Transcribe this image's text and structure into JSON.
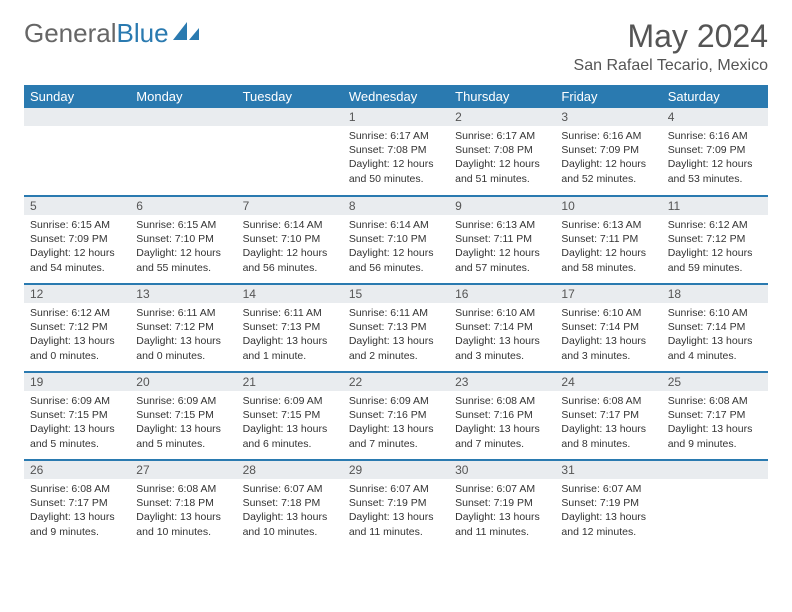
{
  "logo": {
    "text1": "General",
    "text2": "Blue"
  },
  "header": {
    "month": "May 2024",
    "location": "San Rafael Tecario, Mexico"
  },
  "calendar": {
    "background_color": "#ffffff",
    "header_bg": "#2a7ab0",
    "header_fg": "#ffffff",
    "daynum_bg": "#e9ecef",
    "border_color": "#2a7ab0",
    "font_family": "Arial",
    "columns": [
      "Sunday",
      "Monday",
      "Tuesday",
      "Wednesday",
      "Thursday",
      "Friday",
      "Saturday"
    ],
    "weeks": [
      [
        null,
        null,
        null,
        {
          "n": "1",
          "sr": "6:17 AM",
          "ss": "7:08 PM",
          "dl": "12 hours and 50 minutes."
        },
        {
          "n": "2",
          "sr": "6:17 AM",
          "ss": "7:08 PM",
          "dl": "12 hours and 51 minutes."
        },
        {
          "n": "3",
          "sr": "6:16 AM",
          "ss": "7:09 PM",
          "dl": "12 hours and 52 minutes."
        },
        {
          "n": "4",
          "sr": "6:16 AM",
          "ss": "7:09 PM",
          "dl": "12 hours and 53 minutes."
        }
      ],
      [
        {
          "n": "5",
          "sr": "6:15 AM",
          "ss": "7:09 PM",
          "dl": "12 hours and 54 minutes."
        },
        {
          "n": "6",
          "sr": "6:15 AM",
          "ss": "7:10 PM",
          "dl": "12 hours and 55 minutes."
        },
        {
          "n": "7",
          "sr": "6:14 AM",
          "ss": "7:10 PM",
          "dl": "12 hours and 56 minutes."
        },
        {
          "n": "8",
          "sr": "6:14 AM",
          "ss": "7:10 PM",
          "dl": "12 hours and 56 minutes."
        },
        {
          "n": "9",
          "sr": "6:13 AM",
          "ss": "7:11 PM",
          "dl": "12 hours and 57 minutes."
        },
        {
          "n": "10",
          "sr": "6:13 AM",
          "ss": "7:11 PM",
          "dl": "12 hours and 58 minutes."
        },
        {
          "n": "11",
          "sr": "6:12 AM",
          "ss": "7:12 PM",
          "dl": "12 hours and 59 minutes."
        }
      ],
      [
        {
          "n": "12",
          "sr": "6:12 AM",
          "ss": "7:12 PM",
          "dl": "13 hours and 0 minutes."
        },
        {
          "n": "13",
          "sr": "6:11 AM",
          "ss": "7:12 PM",
          "dl": "13 hours and 0 minutes."
        },
        {
          "n": "14",
          "sr": "6:11 AM",
          "ss": "7:13 PM",
          "dl": "13 hours and 1 minute."
        },
        {
          "n": "15",
          "sr": "6:11 AM",
          "ss": "7:13 PM",
          "dl": "13 hours and 2 minutes."
        },
        {
          "n": "16",
          "sr": "6:10 AM",
          "ss": "7:14 PM",
          "dl": "13 hours and 3 minutes."
        },
        {
          "n": "17",
          "sr": "6:10 AM",
          "ss": "7:14 PM",
          "dl": "13 hours and 3 minutes."
        },
        {
          "n": "18",
          "sr": "6:10 AM",
          "ss": "7:14 PM",
          "dl": "13 hours and 4 minutes."
        }
      ],
      [
        {
          "n": "19",
          "sr": "6:09 AM",
          "ss": "7:15 PM",
          "dl": "13 hours and 5 minutes."
        },
        {
          "n": "20",
          "sr": "6:09 AM",
          "ss": "7:15 PM",
          "dl": "13 hours and 5 minutes."
        },
        {
          "n": "21",
          "sr": "6:09 AM",
          "ss": "7:15 PM",
          "dl": "13 hours and 6 minutes."
        },
        {
          "n": "22",
          "sr": "6:09 AM",
          "ss": "7:16 PM",
          "dl": "13 hours and 7 minutes."
        },
        {
          "n": "23",
          "sr": "6:08 AM",
          "ss": "7:16 PM",
          "dl": "13 hours and 7 minutes."
        },
        {
          "n": "24",
          "sr": "6:08 AM",
          "ss": "7:17 PM",
          "dl": "13 hours and 8 minutes."
        },
        {
          "n": "25",
          "sr": "6:08 AM",
          "ss": "7:17 PM",
          "dl": "13 hours and 9 minutes."
        }
      ],
      [
        {
          "n": "26",
          "sr": "6:08 AM",
          "ss": "7:17 PM",
          "dl": "13 hours and 9 minutes."
        },
        {
          "n": "27",
          "sr": "6:08 AM",
          "ss": "7:18 PM",
          "dl": "13 hours and 10 minutes."
        },
        {
          "n": "28",
          "sr": "6:07 AM",
          "ss": "7:18 PM",
          "dl": "13 hours and 10 minutes."
        },
        {
          "n": "29",
          "sr": "6:07 AM",
          "ss": "7:19 PM",
          "dl": "13 hours and 11 minutes."
        },
        {
          "n": "30",
          "sr": "6:07 AM",
          "ss": "7:19 PM",
          "dl": "13 hours and 11 minutes."
        },
        {
          "n": "31",
          "sr": "6:07 AM",
          "ss": "7:19 PM",
          "dl": "13 hours and 12 minutes."
        },
        null
      ]
    ],
    "labels": {
      "sunrise": "Sunrise:",
      "sunset": "Sunset:",
      "daylight": "Daylight:"
    }
  }
}
